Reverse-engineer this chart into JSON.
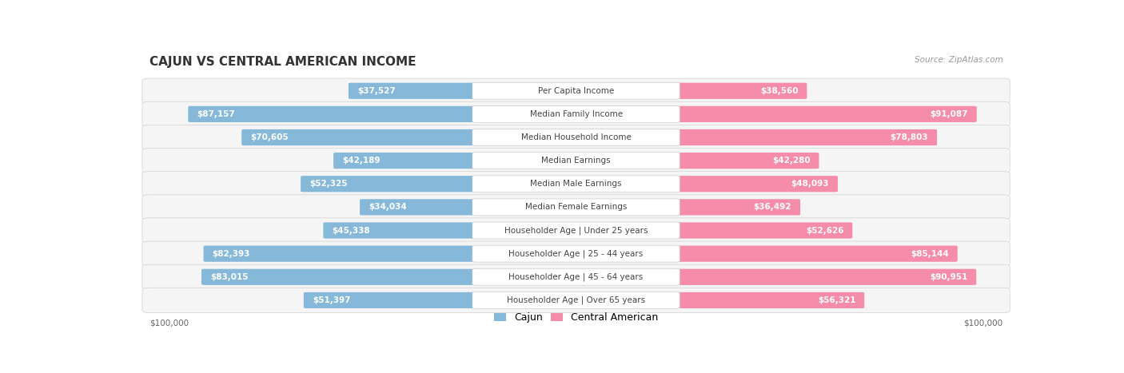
{
  "title": "CAJUN VS CENTRAL AMERICAN INCOME",
  "source": "Source: ZipAtlas.com",
  "categories": [
    "Per Capita Income",
    "Median Family Income",
    "Median Household Income",
    "Median Earnings",
    "Median Male Earnings",
    "Median Female Earnings",
    "Householder Age | Under 25 years",
    "Householder Age | 25 - 44 years",
    "Householder Age | 45 - 64 years",
    "Householder Age | Over 65 years"
  ],
  "cajun_values": [
    37527,
    87157,
    70605,
    42189,
    52325,
    34034,
    45338,
    82393,
    83015,
    51397
  ],
  "central_american_values": [
    38560,
    91087,
    78803,
    42280,
    48093,
    36492,
    52626,
    85144,
    90951,
    56321
  ],
  "cajun_color": "#85b8d9",
  "central_american_color": "#f48caa",
  "max_value": 100000,
  "background_color": "#ffffff",
  "row_bg_color": "#f5f5f5",
  "title_fontsize": 11,
  "label_fontsize": 7.5,
  "value_fontsize": 7.5,
  "legend_fontsize": 9
}
